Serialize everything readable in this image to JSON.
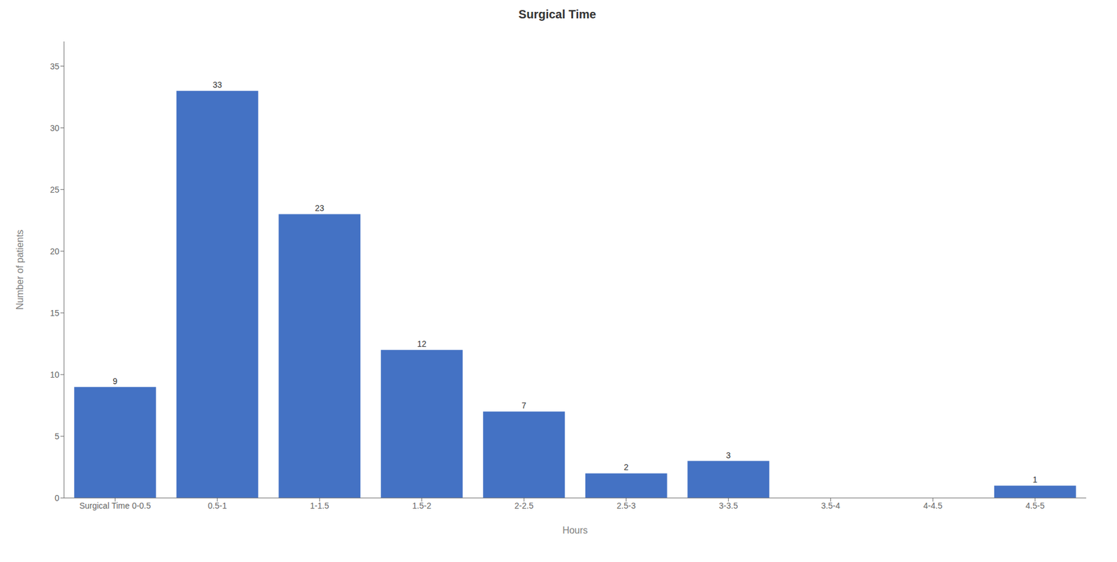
{
  "chart_data": {
    "type": "bar",
    "title": "Surgical Time",
    "xlabel": "Hours",
    "ylabel": "Number of patients",
    "categories": [
      "Surgical Time 0-0.5",
      "0.5-1",
      "1-1.5",
      "1.5-2",
      "2-2.5",
      "2.5-3",
      "3-3.5",
      "3.5-4",
      "4-4.5",
      "4.5-5"
    ],
    "values": [
      9,
      33,
      23,
      12,
      7,
      2,
      3,
      0,
      0,
      1
    ],
    "color": "#4472C4",
    "ylim": [
      0,
      37
    ],
    "yticks": [
      0,
      5,
      10,
      15,
      20,
      25,
      30,
      35
    ],
    "data_labels": true,
    "grid": false
  }
}
